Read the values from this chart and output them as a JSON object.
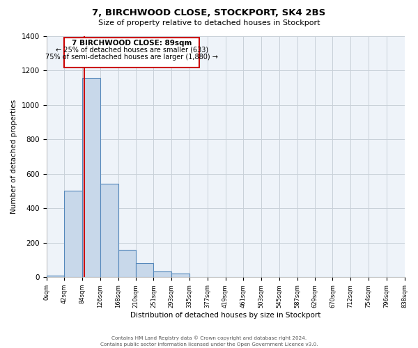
{
  "title": "7, BIRCHWOOD CLOSE, STOCKPORT, SK4 2BS",
  "subtitle": "Size of property relative to detached houses in Stockport",
  "xlabel": "Distribution of detached houses by size in Stockport",
  "ylabel": "Number of detached properties",
  "footnote1": "Contains HM Land Registry data © Crown copyright and database right 2024.",
  "footnote2": "Contains public sector information licensed under the Open Government Licence v3.0.",
  "bar_edges": [
    0,
    42,
    84,
    126,
    168,
    210,
    251,
    293,
    335,
    377,
    419,
    461,
    503,
    545,
    587,
    629,
    670,
    712,
    754,
    796,
    838
  ],
  "bar_heights": [
    10,
    500,
    1155,
    540,
    160,
    82,
    35,
    20,
    0,
    0,
    0,
    0,
    0,
    0,
    0,
    0,
    0,
    0,
    0,
    0
  ],
  "bar_color": "#c8d8ea",
  "bar_edge_color": "#5588bb",
  "bar_edge_width": 0.8,
  "grid_color": "#c8d0d8",
  "background_color": "#eef3f9",
  "annotation_box_edge_color": "#cc0000",
  "annotation_line_color": "#cc0000",
  "annotation_text_line1": "7 BIRCHWOOD CLOSE: 89sqm",
  "annotation_text_line2": "← 25% of detached houses are smaller (633)",
  "annotation_text_line3": "75% of semi-detached houses are larger (1,880) →",
  "property_size": 89,
  "xlim_left": 0,
  "xlim_right": 838,
  "ylim_top": 1400,
  "x_tick_labels": [
    "0sqm",
    "42sqm",
    "84sqm",
    "126sqm",
    "168sqm",
    "210sqm",
    "251sqm",
    "293sqm",
    "335sqm",
    "377sqm",
    "419sqm",
    "461sqm",
    "503sqm",
    "545sqm",
    "587sqm",
    "629sqm",
    "670sqm",
    "712sqm",
    "754sqm",
    "796sqm",
    "838sqm"
  ],
  "x_tick_positions": [
    0,
    42,
    84,
    126,
    168,
    210,
    251,
    293,
    335,
    377,
    419,
    461,
    503,
    545,
    587,
    629,
    670,
    712,
    754,
    796,
    838
  ],
  "ytick_positions": [
    0,
    200,
    400,
    600,
    800,
    1000,
    1200,
    1400
  ]
}
